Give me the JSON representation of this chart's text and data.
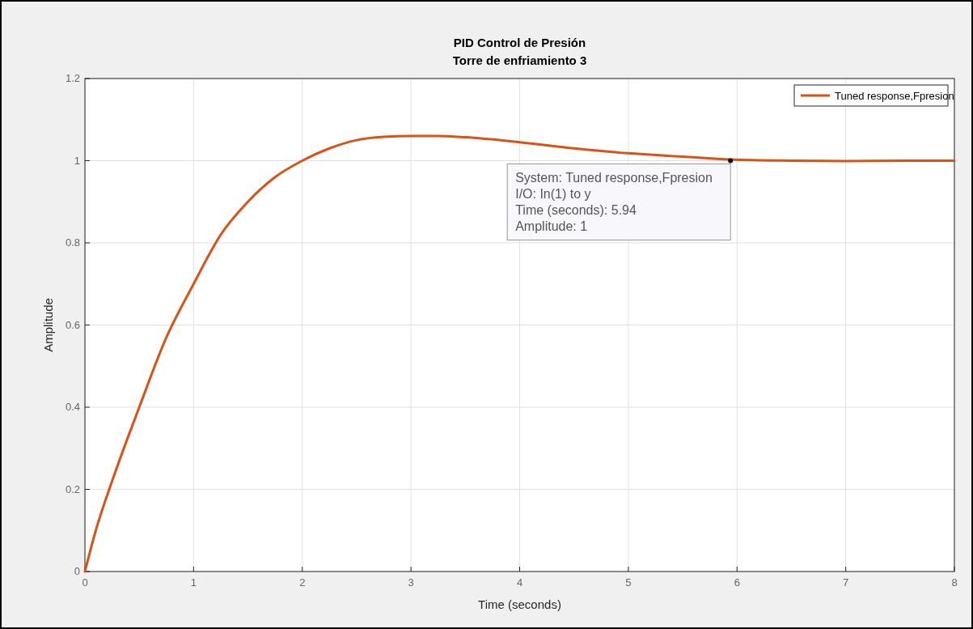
{
  "chart_data": {
    "type": "line",
    "title": "PID Control de Presión",
    "subtitle": "Torre de enfriamiento 3",
    "xlabel": "Time (seconds)",
    "ylabel": "Amplitude",
    "xlim": [
      0,
      8
    ],
    "ylim": [
      0,
      1.2
    ],
    "xticks": [
      0,
      1,
      2,
      3,
      4,
      5,
      6,
      7,
      8
    ],
    "yticks": [
      0,
      0.2,
      0.4,
      0.6,
      0.8,
      1,
      1.2
    ],
    "grid": true,
    "legend": "top right",
    "series": [
      {
        "name": "Tuned response,Fpresion",
        "color": "#d95319",
        "x": [
          0,
          0.1,
          0.25,
          0.5,
          0.75,
          1,
          1.25,
          1.5,
          1.75,
          2,
          2.25,
          2.5,
          2.75,
          3,
          3.25,
          3.5,
          4,
          4.5,
          5,
          5.5,
          5.94,
          6.5,
          7,
          7.5,
          8
        ],
        "values": [
          0,
          0.1,
          0.22,
          0.4,
          0.57,
          0.7,
          0.82,
          0.9,
          0.96,
          1.0,
          1.03,
          1.05,
          1.058,
          1.06,
          1.06,
          1.057,
          1.045,
          1.03,
          1.018,
          1.01,
          1.003,
          1.0,
          0.999,
          1.0,
          1.0
        ]
      }
    ],
    "annotations": [
      {
        "text": "System: Tuned response,Fpresion\nI/O: In(1) to y\nTime (seconds): 5.94\nAmplitude: 1",
        "x": 5.94,
        "y": 1
      }
    ]
  }
}
